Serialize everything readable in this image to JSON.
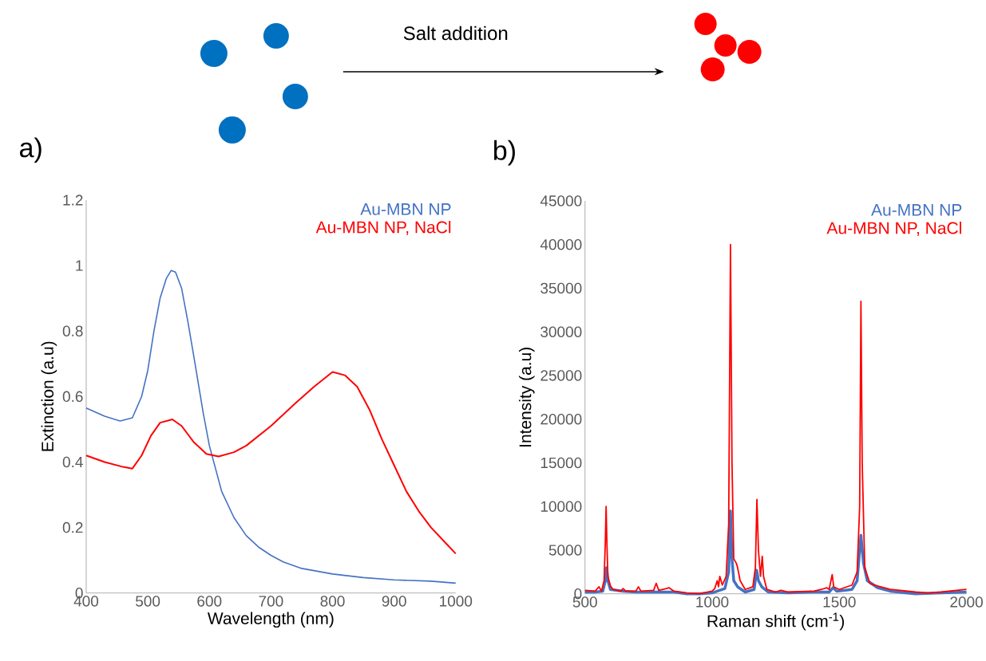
{
  "chart_data": [
    {
      "type": "line",
      "title": "a)",
      "xlabel": "Wavelength (nm)",
      "ylabel": "Extinction (a.u)",
      "annotations": [
        "Salt addition"
      ],
      "legend": "top right",
      "xlim": [
        400,
        1000
      ],
      "ylim": [
        0,
        1.2
      ],
      "xticks": [
        400,
        500,
        600,
        700,
        800,
        900,
        1000
      ],
      "yticks": [
        0,
        0.2,
        0.4,
        0.6,
        0.8,
        1,
        1.2
      ],
      "series": [
        {
          "name": "Au-MBN NP",
          "color": "#4472c4",
          "x": [
            400,
            430,
            455,
            475,
            490,
            500,
            510,
            520,
            530,
            538,
            545,
            555,
            565,
            575,
            590,
            600,
            610,
            620,
            640,
            660,
            680,
            700,
            720,
            750,
            800,
            850,
            900,
            960,
            1000
          ],
          "values": [
            0.565,
            0.54,
            0.525,
            0.535,
            0.6,
            0.68,
            0.8,
            0.9,
            0.96,
            0.985,
            0.98,
            0.93,
            0.83,
            0.72,
            0.55,
            0.45,
            0.38,
            0.31,
            0.23,
            0.175,
            0.14,
            0.115,
            0.095,
            0.075,
            0.058,
            0.047,
            0.04,
            0.036,
            0.03
          ]
        },
        {
          "name": "Au-MBN NP, NaCl",
          "color": "#ff0000",
          "x": [
            400,
            430,
            460,
            475,
            490,
            505,
            520,
            540,
            555,
            575,
            595,
            615,
            640,
            660,
            700,
            740,
            770,
            800,
            820,
            840,
            860,
            880,
            900,
            920,
            940,
            960,
            980,
            1000
          ],
          "values": [
            0.42,
            0.4,
            0.385,
            0.38,
            0.42,
            0.48,
            0.52,
            0.53,
            0.51,
            0.46,
            0.425,
            0.417,
            0.43,
            0.45,
            0.51,
            0.58,
            0.63,
            0.675,
            0.665,
            0.63,
            0.56,
            0.47,
            0.39,
            0.31,
            0.25,
            0.2,
            0.16,
            0.12
          ]
        }
      ]
    },
    {
      "type": "line",
      "title": "b)",
      "xlabel": "Raman shift (cm$^{-1}$)",
      "ylabel": "Intensity (a.u)",
      "legend": "top right",
      "xlim": [
        500,
        2000
      ],
      "ylim": [
        0,
        45000
      ],
      "xticks": [
        500,
        1000,
        1500,
        2000
      ],
      "yticks": [
        0,
        5000,
        10000,
        15000,
        20000,
        25000,
        30000,
        35000,
        40000,
        45000
      ],
      "series": [
        {
          "name": "Au-MBN NP",
          "color": "#4472c4",
          "x": [
            500,
            540,
            570,
            580,
            585,
            590,
            600,
            650,
            700,
            800,
            850,
            900,
            950,
            1000,
            1050,
            1065,
            1072,
            1078,
            1085,
            1100,
            1130,
            1165,
            1175,
            1182,
            1195,
            1220,
            1300,
            1400,
            1460,
            1475,
            1490,
            1550,
            1570,
            1585,
            1595,
            1610,
            1650,
            1700,
            1800,
            1900,
            2000
          ],
          "values": [
            200,
            200,
            300,
            1500,
            3000,
            1500,
            500,
            300,
            200,
            200,
            200,
            0,
            0,
            100,
            600,
            2500,
            9500,
            4000,
            1500,
            800,
            200,
            500,
            2700,
            1500,
            800,
            200,
            100,
            200,
            200,
            700,
            300,
            500,
            1500,
            6700,
            3500,
            1500,
            700,
            300,
            0,
            100,
            200
          ]
        },
        {
          "name": "Au-MBN NP, NaCl",
          "color": "#ff0000",
          "x": [
            500,
            540,
            555,
            565,
            575,
            580,
            583,
            586,
            590,
            600,
            610,
            640,
            650,
            660,
            700,
            710,
            720,
            770,
            780,
            790,
            820,
            830,
            850,
            900,
            950,
            1000,
            1010,
            1020,
            1025,
            1030,
            1040,
            1055,
            1065,
            1072,
            1078,
            1085,
            1095,
            1100,
            1110,
            1130,
            1160,
            1170,
            1176,
            1182,
            1190,
            1197,
            1202,
            1215,
            1250,
            1270,
            1300,
            1400,
            1430,
            1450,
            1460,
            1472,
            1478,
            1500,
            1550,
            1570,
            1580,
            1585,
            1590,
            1600,
            1620,
            1650,
            1700,
            1800,
            1850,
            1900,
            2000
          ],
          "values": [
            400,
            300,
            800,
            300,
            1500,
            6000,
            10000,
            6000,
            2000,
            900,
            500,
            300,
            600,
            300,
            300,
            800,
            300,
            400,
            1200,
            400,
            600,
            700,
            300,
            100,
            0,
            300,
            600,
            1500,
            800,
            2000,
            1000,
            2000,
            8000,
            40000,
            15000,
            4000,
            3500,
            3000,
            1500,
            500,
            800,
            3000,
            10800,
            5000,
            2000,
            4300,
            2000,
            500,
            200,
            400,
            200,
            300,
            500,
            700,
            500,
            2200,
            800,
            500,
            1000,
            2500,
            10000,
            33500,
            15000,
            3000,
            1200,
            900,
            500,
            200,
            100,
            200,
            500
          ]
        }
      ]
    }
  ]
}
